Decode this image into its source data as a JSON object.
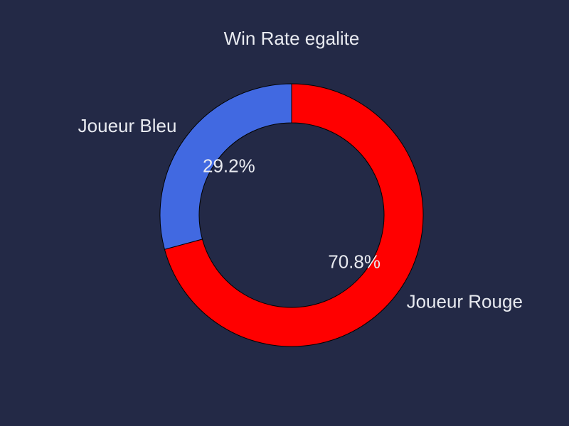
{
  "chart_data": {
    "type": "pie",
    "variant": "donut",
    "title": "Win Rate egalite",
    "slices": [
      {
        "label": "Joueur Rouge",
        "value": 70.8,
        "pct_label": "70.8%",
        "color": "#ff0000"
      },
      {
        "label": "Joueur Bleu",
        "value": 29.2,
        "pct_label": "29.2%",
        "color": "#4169e1"
      }
    ],
    "start_angle": "top (12 o'clock), clockwise",
    "background_color": "#232946",
    "edge_color": "#000000",
    "text_color": "#e8eaf0",
    "legend": "none"
  }
}
